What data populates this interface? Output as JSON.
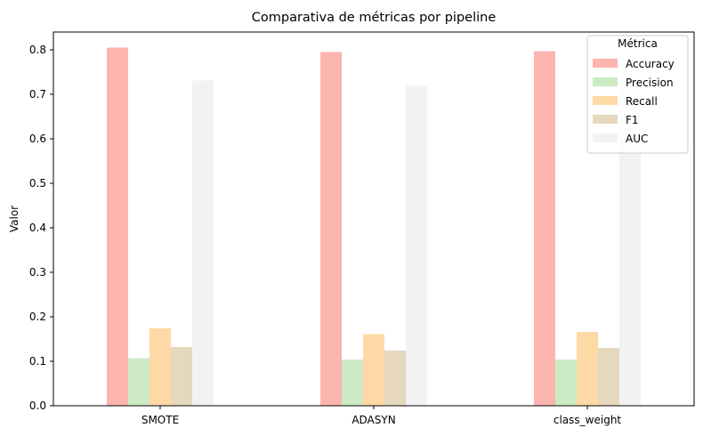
{
  "chart_data": {
    "type": "bar",
    "title": "Comparativa de métricas por pipeline",
    "xlabel": "",
    "ylabel": "Valor",
    "categories": [
      "SMOTE",
      "ADASYN",
      "class_weight"
    ],
    "ylim": [
      0,
      0.84
    ],
    "yticks": [
      "0.0",
      "0.1",
      "0.2",
      "0.3",
      "0.4",
      "0.5",
      "0.6",
      "0.7",
      "0.8"
    ],
    "grid": false,
    "legend": {
      "title": "Métrica",
      "position": "top-right"
    },
    "series": [
      {
        "name": "Accuracy",
        "values": [
          0.805,
          0.795,
          0.797
        ],
        "color": "#fbb4ae"
      },
      {
        "name": "Precision",
        "values": [
          0.107,
          0.104,
          0.104
        ],
        "color": "#ccebc5"
      },
      {
        "name": "Recall",
        "values": [
          0.174,
          0.161,
          0.166
        ],
        "color": "#fed9a6"
      },
      {
        "name": "F1",
        "values": [
          0.132,
          0.124,
          0.13
        ],
        "color": "#e5d8bd"
      },
      {
        "name": "AUC",
        "values": [
          0.731,
          0.719,
          0.727
        ],
        "color": "#f2f2f2"
      }
    ]
  }
}
